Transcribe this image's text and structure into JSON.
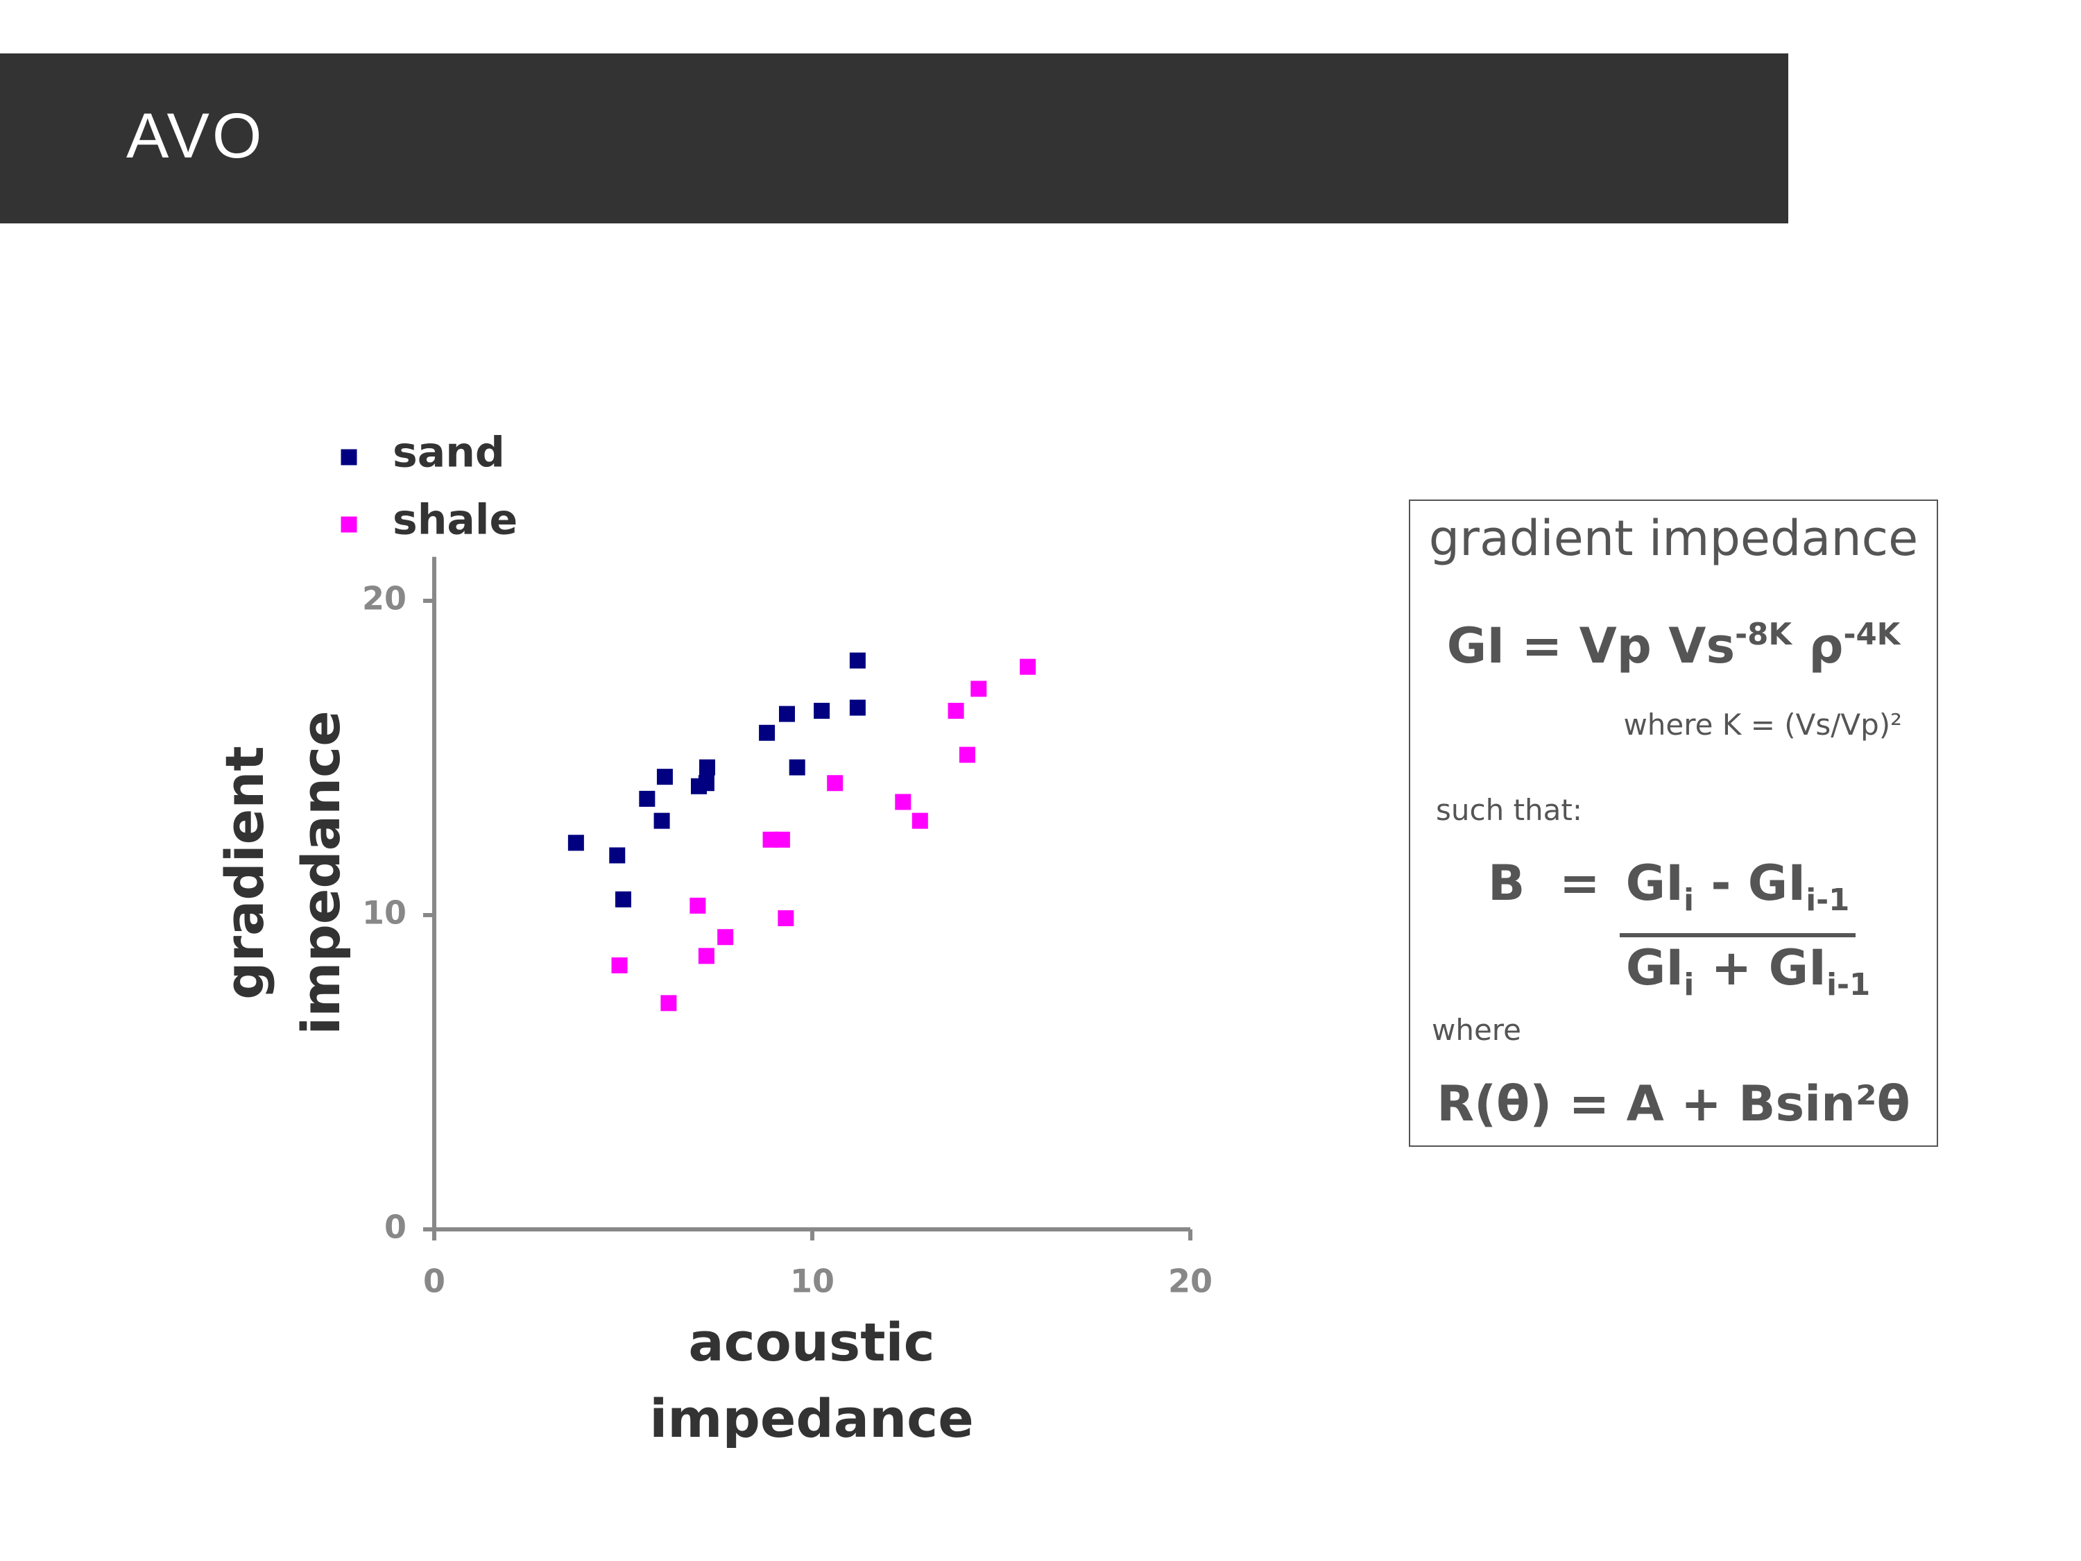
{
  "header": {
    "title": "AVO"
  },
  "chart_data": {
    "type": "scatter",
    "xlabel": "acoustic impedance",
    "ylabel": "gradient impedance",
    "xlim": [
      0,
      20
    ],
    "ylim": [
      0,
      21.4
    ],
    "xticks": [
      0,
      10,
      20
    ],
    "yticks": [
      0,
      10,
      20
    ],
    "legend": "top-left",
    "series": [
      {
        "name": "sand",
        "color": "#000080",
        "x": [
          3.75,
          4.84,
          5.0,
          5.63,
          6.02,
          6.1,
          7.0,
          7.2,
          7.22,
          8.8,
          9.33,
          9.6,
          10.25,
          11.2,
          11.2
        ],
        "values": [
          12.3,
          11.9,
          10.5,
          13.7,
          13.0,
          14.4,
          14.1,
          14.2,
          14.7,
          15.8,
          16.4,
          14.7,
          16.5,
          16.6,
          18.1
        ]
      },
      {
        "name": "shale",
        "color": "#ff00ff",
        "x": [
          4.9,
          6.2,
          6.97,
          7.2,
          7.7,
          8.9,
          9.2,
          9.3,
          10.6,
          12.4,
          12.85,
          13.8,
          14.1,
          14.4,
          15.7
        ],
        "values": [
          8.4,
          7.2,
          10.3,
          8.7,
          9.3,
          12.4,
          12.4,
          9.9,
          14.2,
          13.6,
          13.0,
          16.5,
          15.1,
          17.2,
          17.9
        ]
      }
    ]
  },
  "formula_box": {
    "title": "gradient impedance",
    "gi_formula": [
      {
        "text": "GI = Vp Vs"
      },
      {
        "text": "-8K",
        "script": "sup"
      },
      {
        "text": " ρ"
      },
      {
        "text": "-4K",
        "script": "sup"
      }
    ],
    "k_definition": "where K = (Vs/Vp)²",
    "such_that": "such that:",
    "b_lhs": "B",
    "b_equals": "=",
    "b_numerator": [
      {
        "text": "GI"
      },
      {
        "text": "i",
        "script": "sub"
      },
      {
        "text": " - GI"
      },
      {
        "text": "i-1",
        "script": "sub"
      }
    ],
    "b_denominator": [
      {
        "text": "GI"
      },
      {
        "text": "i",
        "script": "sub"
      },
      {
        "text": " + GI"
      },
      {
        "text": "i-1",
        "script": "sub"
      }
    ],
    "where": "where",
    "r_formula": "R(θ) = A + Bsin²θ"
  }
}
